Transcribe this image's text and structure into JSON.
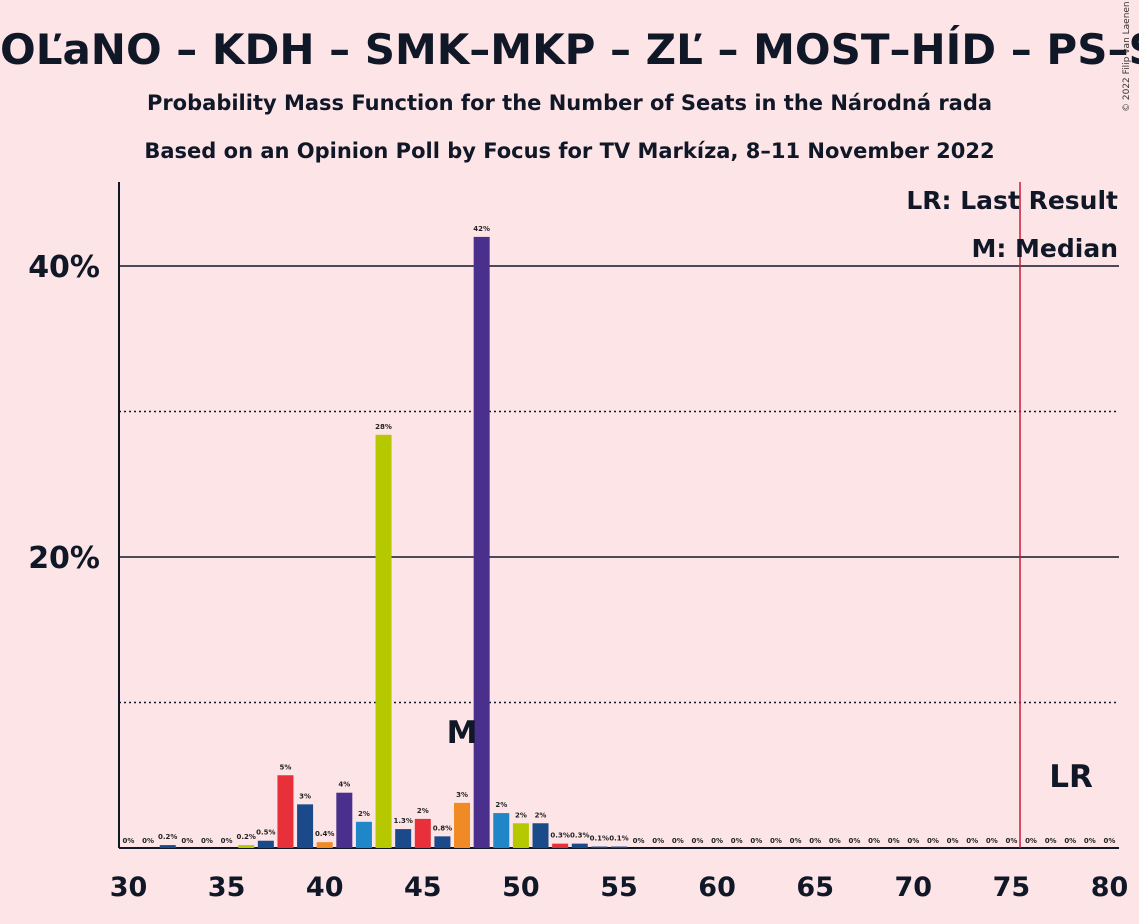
{
  "title": "OĽaNO – KDH – SMK–MKP – ZĽ – MOST–HÍD – PS–SPOLU – SaS – Kotlebovci–ĽSNS",
  "subtitle1": "Probability Mass Function for the Number of Seats in the Národná rada",
  "subtitle2": "Based on an Opinion Poll by Focus for TV Markíza, 8–11 November 2022",
  "copyright": "© 2022 Filip van Laenen",
  "legend": {
    "last_result": "LR: Last Result",
    "median": "M: Median"
  },
  "markers": {
    "median_label": "M",
    "median_seat": 47,
    "lr_label": "LR",
    "last_result_seat": 76
  },
  "colors": {
    "background": "#fde4e6",
    "lr_line": "#c41e3a",
    "dark_blue": "#1a4a8a",
    "red": "#e8303a",
    "orange": "#f08a24",
    "lime": "#b5c800",
    "light_blue": "#1f86c8",
    "purple": "#4a2f8c"
  },
  "chart_data": {
    "type": "bar",
    "xlabel": "",
    "ylabel": "",
    "xlim": [
      30,
      80
    ],
    "ylim": [
      0,
      46
    ],
    "yticks": [
      20,
      40
    ],
    "ytick_labels": [
      "20%",
      "40%"
    ],
    "xticks": [
      30,
      35,
      40,
      45,
      50,
      55,
      60,
      65,
      70,
      75,
      80
    ],
    "grid": {
      "solid": [
        20,
        40
      ],
      "dotted": [
        10,
        30
      ]
    },
    "series": [
      {
        "x": [
          30,
          31,
          32,
          33,
          34,
          35,
          36,
          37,
          38,
          39,
          40,
          41,
          42,
          43,
          44,
          45,
          46,
          47,
          48,
          49,
          50,
          51,
          52,
          53,
          54,
          55,
          56,
          57,
          58,
          59,
          60,
          61,
          62,
          63,
          64,
          65,
          66,
          67,
          68,
          69,
          70,
          71,
          72,
          73,
          74,
          75,
          76,
          77,
          78,
          79,
          80
        ],
        "values": [
          0,
          0,
          0.2,
          0,
          0,
          0,
          0.2,
          0.5,
          5,
          3,
          0.4,
          3.8,
          1.8,
          28.4,
          1.3,
          2,
          0.8,
          3.1,
          42,
          2.4,
          1.7,
          1.7,
          0.3,
          0.3,
          0.1,
          0.1,
          0,
          0,
          0,
          0,
          0,
          0,
          0,
          0,
          0,
          0,
          0,
          0,
          0,
          0,
          0,
          0,
          0,
          0,
          0,
          0,
          0,
          0,
          0,
          0,
          0
        ],
        "labels": [
          "0%",
          "0%",
          "0.2%",
          "0%",
          "0%",
          "0%",
          "0.2%",
          "0.5%",
          "5%",
          "3%",
          "0.4%",
          "4%",
          "2%",
          "28%",
          "1.3%",
          "2%",
          "0.8%",
          "3%",
          "42%",
          "2%",
          "2%",
          "2%",
          "0.3%",
          "0.3%",
          "0.1%",
          "0.1%",
          "0%",
          "0%",
          "0%",
          "0%",
          "0%",
          "0%",
          "0%",
          "0%",
          "0%",
          "0%",
          "0%",
          "0%",
          "0%",
          "0%",
          "0%",
          "0%",
          "0%",
          "0%",
          "0%",
          "0%",
          "0%",
          "0%",
          "0%",
          "0%",
          "0%"
        ],
        "colors": [
          "dark_blue",
          "dark_blue",
          "dark_blue",
          "dark_blue",
          "dark_blue",
          "dark_blue",
          "lime",
          "dark_blue",
          "red",
          "dark_blue",
          "orange",
          "purple",
          "light_blue",
          "lime",
          "dark_blue",
          "red",
          "dark_blue",
          "orange",
          "purple",
          "light_blue",
          "lime",
          "dark_blue",
          "red",
          "dark_blue",
          "dark_blue",
          "dark_blue",
          "dark_blue",
          "dark_blue",
          "dark_blue",
          "dark_blue",
          "dark_blue",
          "dark_blue",
          "dark_blue",
          "dark_blue",
          "dark_blue",
          "dark_blue",
          "dark_blue",
          "dark_blue",
          "dark_blue",
          "dark_blue",
          "dark_blue",
          "dark_blue",
          "dark_blue",
          "dark_blue",
          "dark_blue",
          "dark_blue",
          "dark_blue",
          "dark_blue",
          "dark_blue",
          "dark_blue",
          "dark_blue"
        ]
      }
    ]
  }
}
